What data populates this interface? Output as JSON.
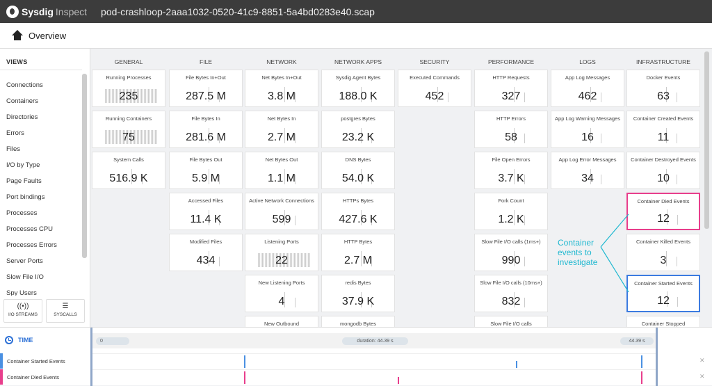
{
  "app": {
    "brand": "Sysdig",
    "product": "Inspect",
    "filename": "pod-crashloop-2aaa1032-0520-41c9-8851-5a4bd0283e40.scap"
  },
  "header": {
    "title": "Overview"
  },
  "sidebar": {
    "title": "VIEWS",
    "items": [
      "Connections",
      "Containers",
      "Directories",
      "Errors",
      "Files",
      "I/O by Type",
      "Page Faults",
      "Port bindings",
      "Processes",
      "Processes CPU",
      "Processes Errors",
      "Server Ports",
      "Slow File I/O",
      "Spy Users"
    ],
    "buttons": [
      {
        "label": "I/O STREAMS",
        "icon": "io-streams-icon"
      },
      {
        "label": "SYSCALLS",
        "icon": "list-icon"
      }
    ]
  },
  "columns": [
    {
      "name": "GENERAL",
      "tiles": [
        {
          "label": "Running Processes",
          "value": "235",
          "chart": "dense"
        },
        {
          "label": "Running Containers",
          "value": "75",
          "chart": "dense"
        },
        {
          "label": "System Calls",
          "value": "516.9 K",
          "chart": "spike"
        }
      ]
    },
    {
      "name": "FILE",
      "tiles": [
        {
          "label": "File Bytes In+Out",
          "value": "287.5 M",
          "chart": "spike"
        },
        {
          "label": "File Bytes In",
          "value": "281.6 M",
          "chart": "spike"
        },
        {
          "label": "File Bytes Out",
          "value": "5.9 M",
          "chart": "spike"
        },
        {
          "label": "Accessed Files",
          "value": "11.4 K",
          "chart": "spike"
        },
        {
          "label": "Modified Files",
          "value": "434",
          "chart": "spike"
        }
      ]
    },
    {
      "name": "NETWORK",
      "tiles": [
        {
          "label": "Net Bytes In+Out",
          "value": "3.8 M",
          "chart": "spike"
        },
        {
          "label": "Net Bytes In",
          "value": "2.7 M",
          "chart": "spike"
        },
        {
          "label": "Net Bytes Out",
          "value": "1.1 M",
          "chart": "spike"
        },
        {
          "label": "Active Network Connections",
          "value": "599",
          "chart": "spike"
        },
        {
          "label": "Listening Ports",
          "value": "22",
          "chart": "dense"
        },
        {
          "label": "New Listening Ports",
          "value": "4",
          "chart": "spike"
        },
        {
          "label": "New Outbound",
          "value": "",
          "chart": "none"
        }
      ]
    },
    {
      "name": "NETWORK APPS",
      "tiles": [
        {
          "label": "Sysdig Agent Bytes",
          "value": "188.0 K",
          "chart": "spike"
        },
        {
          "label": "postgres Bytes",
          "value": "23.2 K",
          "chart": "spike"
        },
        {
          "label": "DNS Bytes",
          "value": "54.0 K",
          "chart": "spike"
        },
        {
          "label": "HTTPs Bytes",
          "value": "427.6 K",
          "chart": "spike"
        },
        {
          "label": "HTTP Bytes",
          "value": "2.7 M",
          "chart": "spike"
        },
        {
          "label": "redis Bytes",
          "value": "37.9 K",
          "chart": "spike"
        },
        {
          "label": "mongodb Bytes",
          "value": "",
          "chart": "none"
        }
      ]
    },
    {
      "name": "SECURITY",
      "tiles": [
        {
          "label": "Executed Commands",
          "value": "452",
          "chart": "spike"
        }
      ]
    },
    {
      "name": "PERFORMANCE",
      "tiles": [
        {
          "label": "HTTP Requests",
          "value": "327",
          "chart": "spike"
        },
        {
          "label": "HTTP Errors",
          "value": "58",
          "chart": "spike"
        },
        {
          "label": "File Open Errors",
          "value": "3.7 K",
          "chart": "spike"
        },
        {
          "label": "Fork Count",
          "value": "1.2 K",
          "chart": "spike"
        },
        {
          "label": "Slow File I/O calls (1ms+)",
          "value": "990",
          "chart": "spike"
        },
        {
          "label": "Slow File I/O calls (10ms+)",
          "value": "832",
          "chart": "spike"
        },
        {
          "label": "Slow File I/O calls",
          "value": "",
          "chart": "none"
        }
      ]
    },
    {
      "name": "LOGS",
      "tiles": [
        {
          "label": "App Log Messages",
          "value": "462",
          "chart": "spike"
        },
        {
          "label": "App Log Warning Messages",
          "value": "16",
          "chart": "spike"
        },
        {
          "label": "App Log Error Messages",
          "value": "34",
          "chart": "spike"
        }
      ]
    },
    {
      "name": "INFRASTRUCTURE",
      "tiles": [
        {
          "label": "Docker Events",
          "value": "63",
          "chart": "spike"
        },
        {
          "label": "Container Created Events",
          "value": "11",
          "chart": "spike"
        },
        {
          "label": "Container Destroyed Events",
          "value": "10",
          "chart": "spike"
        },
        {
          "label": "Container Died Events",
          "value": "12",
          "chart": "spike",
          "highlight": "pink"
        },
        {
          "label": "Container Killed Events",
          "value": "3",
          "chart": "spike"
        },
        {
          "label": "Container Started Events",
          "value": "12",
          "chart": "spike",
          "highlight": "blue"
        },
        {
          "label": "Container Stopped",
          "value": "",
          "chart": "none"
        }
      ]
    }
  ],
  "annotation": {
    "lines": [
      "Container",
      "events to",
      "investigate"
    ],
    "color": "#1fb8d0"
  },
  "timeline": {
    "label": "TIME",
    "start": "0",
    "duration": "duration: 44.39 s",
    "end": "44.39 s",
    "events": [
      {
        "name": "Container Started Events",
        "color": "#4a90e2"
      },
      {
        "name": "Container Died Events",
        "color": "#e83e8c"
      }
    ]
  }
}
